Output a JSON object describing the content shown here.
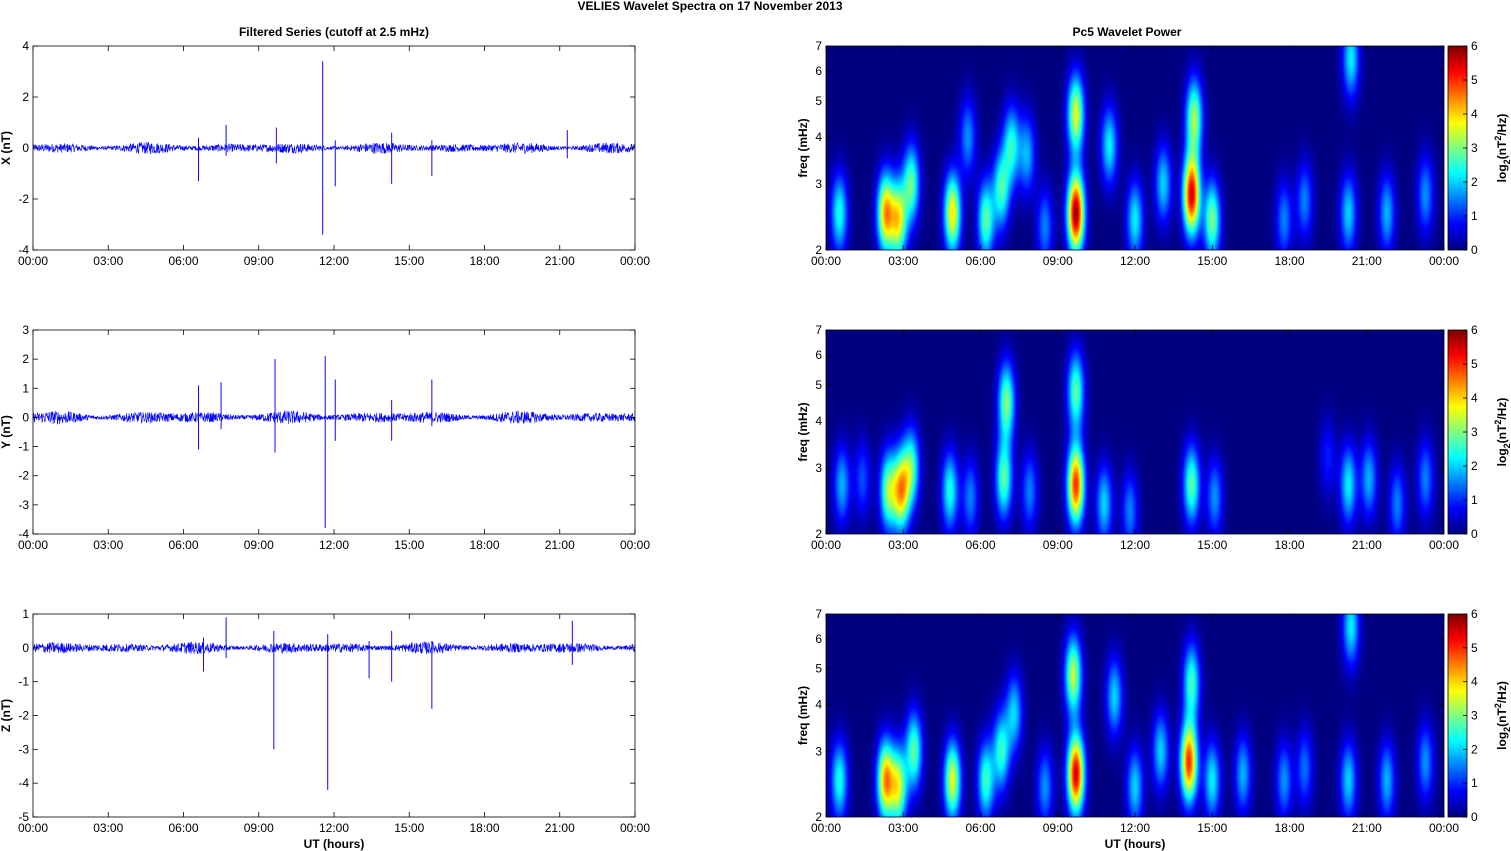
{
  "figure_title": "VELIES Wavelet Spectra on 17 November  2013",
  "left_title": "Filtered Series (cutoff at 2.5 mHz)",
  "right_title": "Pc5 Wavelet Power",
  "x_ticks": [
    "00:00",
    "03:00",
    "06:00",
    "09:00",
    "12:00",
    "15:00",
    "18:00",
    "21:00",
    "00:00"
  ],
  "xlabel": "UT (hours)",
  "freq_label": "freq (mHz)",
  "freq_ticks": [
    "2",
    "3",
    "4",
    "5",
    "6",
    "7"
  ],
  "colorbar_ticks": [
    "0",
    "1",
    "2",
    "3",
    "4",
    "5",
    "6"
  ],
  "colorbar_label": {
    "base": "log",
    "sub": "2",
    "mid": "(nT",
    "sup": "2",
    "end": "/Hz)"
  },
  "colors": {
    "series_line": "#0000ff",
    "colormap": "jet"
  },
  "chart_data": [
    {
      "type": "line",
      "panel": "X",
      "ylabel": "X (nT)",
      "ylim": [
        -4,
        4
      ],
      "y_ticks": [
        "-4",
        "-2",
        "0",
        "2",
        "4"
      ],
      "baseline_amplitude": 0.15,
      "spikes": [
        {
          "t": 6.6,
          "min": -1.3,
          "max": 0.4
        },
        {
          "t": 7.7,
          "min": -0.3,
          "max": 0.9
        },
        {
          "t": 9.7,
          "min": -0.6,
          "max": 0.8
        },
        {
          "t": 11.55,
          "min": -3.4,
          "max": 3.4
        },
        {
          "t": 12.05,
          "min": -1.5,
          "max": 0.3
        },
        {
          "t": 14.3,
          "min": -1.4,
          "max": 0.6
        },
        {
          "t": 15.9,
          "min": -1.1,
          "max": 0.3
        },
        {
          "t": 21.3,
          "min": -0.4,
          "max": 0.7
        }
      ]
    },
    {
      "type": "line",
      "panel": "Y",
      "ylabel": "Y (nT)",
      "ylim": [
        -4,
        3
      ],
      "y_ticks": [
        "-4",
        "-3",
        "-2",
        "-1",
        "0",
        "1",
        "2",
        "3"
      ],
      "baseline_amplitude": 0.15,
      "spikes": [
        {
          "t": 6.6,
          "min": -1.1,
          "max": 1.1
        },
        {
          "t": 7.5,
          "min": -0.4,
          "max": 1.2
        },
        {
          "t": 9.65,
          "min": -1.2,
          "max": 2.0
        },
        {
          "t": 11.65,
          "min": -3.8,
          "max": 2.1
        },
        {
          "t": 12.05,
          "min": -0.8,
          "max": 1.3
        },
        {
          "t": 14.3,
          "min": -0.8,
          "max": 0.6
        },
        {
          "t": 15.9,
          "min": -0.3,
          "max": 1.3
        }
      ]
    },
    {
      "type": "line",
      "panel": "Z",
      "ylabel": "Z (nT)",
      "ylim": [
        -5,
        1
      ],
      "y_ticks": [
        "-5",
        "-4",
        "-3",
        "-2",
        "-1",
        "0",
        "1"
      ],
      "baseline_amplitude": 0.12,
      "spikes": [
        {
          "t": 6.8,
          "min": -0.7,
          "max": 0.3
        },
        {
          "t": 7.7,
          "min": -0.3,
          "max": 0.9
        },
        {
          "t": 9.6,
          "min": -3.0,
          "max": 0.5
        },
        {
          "t": 11.75,
          "min": -4.2,
          "max": 0.4
        },
        {
          "t": 13.4,
          "min": -0.9,
          "max": 0.2
        },
        {
          "t": 14.3,
          "min": -1.0,
          "max": 0.5
        },
        {
          "t": 15.9,
          "min": -1.8,
          "max": 0.2
        },
        {
          "t": 21.5,
          "min": -0.5,
          "max": 0.8
        }
      ]
    },
    {
      "type": "heatmap",
      "panel": "X",
      "xlim": [
        0,
        24
      ],
      "ylim": [
        2,
        7
      ],
      "clim": [
        0,
        6
      ],
      "blobs": [
        {
          "t": 0.5,
          "f": 2.5,
          "p": 2.4
        },
        {
          "t": 2.3,
          "f": 2.5,
          "p": 4.2
        },
        {
          "t": 2.8,
          "f": 2.4,
          "p": 3.6
        },
        {
          "t": 3.3,
          "f": 3.0,
          "p": 2.8
        },
        {
          "t": 4.9,
          "f": 2.5,
          "p": 3.9
        },
        {
          "t": 5.5,
          "f": 4.0,
          "p": 1.6
        },
        {
          "t": 6.2,
          "f": 2.4,
          "p": 2.8
        },
        {
          "t": 6.8,
          "f": 2.9,
          "p": 2.6
        },
        {
          "t": 7.2,
          "f": 3.8,
          "p": 2.4
        },
        {
          "t": 7.8,
          "f": 3.6,
          "p": 1.8
        },
        {
          "t": 8.5,
          "f": 2.3,
          "p": 1.5
        },
        {
          "t": 9.7,
          "f": 2.5,
          "p": 5.9
        },
        {
          "t": 9.7,
          "f": 4.6,
          "p": 3.6
        },
        {
          "t": 11.0,
          "f": 3.8,
          "p": 2.2
        },
        {
          "t": 12.0,
          "f": 2.4,
          "p": 2.2
        },
        {
          "t": 13.1,
          "f": 3.0,
          "p": 2.0
        },
        {
          "t": 14.2,
          "f": 2.8,
          "p": 5.5
        },
        {
          "t": 14.3,
          "f": 4.5,
          "p": 3.2
        },
        {
          "t": 15.0,
          "f": 2.4,
          "p": 3.0
        },
        {
          "t": 17.8,
          "f": 2.4,
          "p": 1.5
        },
        {
          "t": 18.6,
          "f": 2.7,
          "p": 1.5
        },
        {
          "t": 20.4,
          "f": 6.5,
          "p": 2.2
        },
        {
          "t": 20.3,
          "f": 2.5,
          "p": 2.0
        },
        {
          "t": 21.8,
          "f": 2.5,
          "p": 1.8
        },
        {
          "t": 23.3,
          "f": 2.8,
          "p": 1.6
        }
      ]
    },
    {
      "type": "heatmap",
      "panel": "Y",
      "xlim": [
        0,
        24
      ],
      "ylim": [
        2,
        7
      ],
      "clim": [
        0,
        6
      ],
      "blobs": [
        {
          "t": 0.6,
          "f": 2.7,
          "p": 1.8
        },
        {
          "t": 1.4,
          "f": 2.8,
          "p": 1.2
        },
        {
          "t": 2.4,
          "f": 2.6,
          "p": 3.0
        },
        {
          "t": 2.9,
          "f": 2.6,
          "p": 4.0
        },
        {
          "t": 3.3,
          "f": 3.0,
          "p": 2.6
        },
        {
          "t": 4.8,
          "f": 2.6,
          "p": 2.4
        },
        {
          "t": 5.6,
          "f": 2.5,
          "p": 1.5
        },
        {
          "t": 6.9,
          "f": 2.8,
          "p": 2.8
        },
        {
          "t": 7.0,
          "f": 4.5,
          "p": 3.0
        },
        {
          "t": 7.9,
          "f": 2.6,
          "p": 1.5
        },
        {
          "t": 9.7,
          "f": 2.7,
          "p": 5.0
        },
        {
          "t": 9.7,
          "f": 4.8,
          "p": 2.8
        },
        {
          "t": 10.8,
          "f": 2.4,
          "p": 2.0
        },
        {
          "t": 11.8,
          "f": 2.3,
          "p": 1.5
        },
        {
          "t": 14.2,
          "f": 2.7,
          "p": 2.8
        },
        {
          "t": 15.1,
          "f": 2.5,
          "p": 1.6
        },
        {
          "t": 19.5,
          "f": 3.2,
          "p": 0.9
        },
        {
          "t": 20.3,
          "f": 2.7,
          "p": 2.2
        },
        {
          "t": 21.1,
          "f": 2.8,
          "p": 1.8
        },
        {
          "t": 22.2,
          "f": 2.4,
          "p": 1.5
        },
        {
          "t": 23.3,
          "f": 2.8,
          "p": 1.5
        }
      ]
    },
    {
      "type": "heatmap",
      "panel": "Z",
      "xlim": [
        0,
        24
      ],
      "ylim": [
        2,
        7
      ],
      "clim": [
        0,
        6
      ],
      "blobs": [
        {
          "t": 0.5,
          "f": 2.5,
          "p": 2.4
        },
        {
          "t": 2.3,
          "f": 2.5,
          "p": 4.3
        },
        {
          "t": 2.8,
          "f": 2.4,
          "p": 3.4
        },
        {
          "t": 3.4,
          "f": 3.0,
          "p": 2.8
        },
        {
          "t": 4.9,
          "f": 2.5,
          "p": 3.6
        },
        {
          "t": 6.2,
          "f": 2.5,
          "p": 2.6
        },
        {
          "t": 6.8,
          "f": 3.0,
          "p": 2.5
        },
        {
          "t": 7.3,
          "f": 3.8,
          "p": 2.0
        },
        {
          "t": 8.5,
          "f": 2.4,
          "p": 1.6
        },
        {
          "t": 9.7,
          "f": 2.6,
          "p": 5.5
        },
        {
          "t": 9.6,
          "f": 4.8,
          "p": 3.4
        },
        {
          "t": 11.2,
          "f": 4.2,
          "p": 2.0
        },
        {
          "t": 12.0,
          "f": 2.4,
          "p": 2.0
        },
        {
          "t": 13.0,
          "f": 3.0,
          "p": 2.0
        },
        {
          "t": 14.1,
          "f": 2.8,
          "p": 5.0
        },
        {
          "t": 14.2,
          "f": 4.6,
          "p": 2.6
        },
        {
          "t": 15.0,
          "f": 2.5,
          "p": 2.2
        },
        {
          "t": 16.2,
          "f": 2.6,
          "p": 1.8
        },
        {
          "t": 17.8,
          "f": 2.5,
          "p": 1.6
        },
        {
          "t": 18.6,
          "f": 2.7,
          "p": 1.4
        },
        {
          "t": 20.4,
          "f": 6.5,
          "p": 2.2
        },
        {
          "t": 20.3,
          "f": 2.5,
          "p": 2.0
        },
        {
          "t": 21.8,
          "f": 2.5,
          "p": 1.8
        },
        {
          "t": 23.3,
          "f": 2.8,
          "p": 1.6
        }
      ]
    }
  ]
}
